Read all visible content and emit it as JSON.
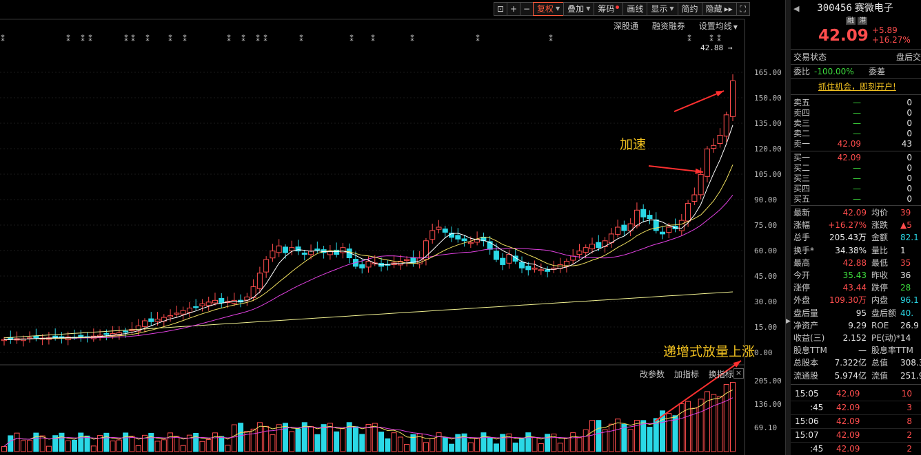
{
  "toolbar": {
    "buttons": [
      "复权",
      "叠加",
      "筹码",
      "画线",
      "显示",
      "简约",
      "隐藏"
    ],
    "sublinks": [
      "深股通",
      "融资融券",
      "设置均线"
    ]
  },
  "chart": {
    "price_labels": [
      "165.00",
      "150.00",
      "135.00",
      "120.00",
      "105.00",
      "90.00",
      "75.00",
      "60.00",
      "45.00",
      "30.00",
      "15.00",
      "0.00"
    ],
    "vol_labels": [
      "205.00",
      "136.00",
      "69.10"
    ],
    "high_marker": "42.88",
    "indicator_links": [
      "改参数",
      "加指标",
      "换指标"
    ],
    "annotation_accelerate": "加速",
    "annotation_volume": "递增式放量上涨",
    "colors": {
      "up": "#ff4d4d",
      "down": "#2ad8e6",
      "ma5": "#ffffff",
      "ma10": "#f0e060",
      "ma20": "#e040e0",
      "ma60": "#f0f090",
      "arrow": "#ff3030"
    }
  },
  "quote": {
    "code": "300456",
    "name": "赛微电子",
    "tags": [
      "融",
      "港"
    ],
    "price": "42.09",
    "change": "+5.89",
    "change_pct": "+16.27%",
    "trade_status_label": "交易状态",
    "trade_status_value": "盘后交",
    "weibi_label": "委比",
    "weibi_value": "-100.00%",
    "weicha_label": "委差",
    "promo": "抓住机会，即刻开户!",
    "sells": [
      {
        "label": "卖五",
        "price": "—",
        "vol": "0"
      },
      {
        "label": "卖四",
        "price": "—",
        "vol": "0"
      },
      {
        "label": "卖三",
        "price": "—",
        "vol": "0"
      },
      {
        "label": "卖二",
        "price": "—",
        "vol": "0"
      },
      {
        "label": "卖一",
        "price": "42.09",
        "vol": "43"
      }
    ],
    "buys": [
      {
        "label": "买一",
        "price": "42.09",
        "vol": "0"
      },
      {
        "label": "买二",
        "price": "—",
        "vol": "0"
      },
      {
        "label": "买三",
        "price": "—",
        "vol": "0"
      },
      {
        "label": "买四",
        "price": "—",
        "vol": "0"
      },
      {
        "label": "买五",
        "price": "—",
        "vol": "0"
      }
    ],
    "stats": [
      {
        "l1": "最新",
        "v1": "42.09",
        "c1": "red",
        "l2": "均价",
        "v2": "39",
        "c2": "red"
      },
      {
        "l1": "涨幅",
        "v1": "+16.27%",
        "c1": "red",
        "l2": "涨跌",
        "v2": "▲5",
        "c2": "red"
      },
      {
        "l1": "总手",
        "v1": "205.43万",
        "c1": "white",
        "l2": "金额",
        "v2": "82.1",
        "c2": "cyan"
      },
      {
        "l1": "换手*",
        "v1": "34.38%",
        "c1": "white",
        "l2": "量比",
        "v2": "1",
        "c2": "white"
      },
      {
        "l1": "最高",
        "v1": "42.88",
        "c1": "red",
        "l2": "最低",
        "v2": "35",
        "c2": "red"
      },
      {
        "l1": "今开",
        "v1": "35.43",
        "c1": "green",
        "l2": "昨收",
        "v2": "36",
        "c2": "white"
      },
      {
        "l1": "涨停",
        "v1": "43.44",
        "c1": "red",
        "l2": "跌停",
        "v2": "28",
        "c2": "green"
      },
      {
        "l1": "外盘",
        "v1": "109.30万",
        "c1": "red",
        "l2": "内盘",
        "v2": "96.1",
        "c2": "cyan"
      },
      {
        "l1": "盘后量",
        "v1": "95",
        "c1": "white",
        "l2": "盘后额",
        "v2": "40.",
        "c2": "cyan"
      },
      {
        "l1": "净资产",
        "v1": "9.29",
        "c1": "white",
        "l2": "ROE",
        "v2": "26.9",
        "c2": "white"
      },
      {
        "l1": "收益(三)",
        "v1": "2.152",
        "c1": "white",
        "l2": "PE(动)*",
        "v2": "14",
        "c2": "white"
      },
      {
        "l1": "股息TTM",
        "v1": "—",
        "c1": "white",
        "l2": "股息率TTM",
        "v2": "",
        "c2": "white"
      },
      {
        "l1": "总股本",
        "v1": "7.322亿",
        "c1": "white",
        "l2": "总值",
        "v2": "308.3",
        "c2": "white"
      },
      {
        "l1": "流通股",
        "v1": "5.974亿",
        "c1": "white",
        "l2": "流值",
        "v2": "251.9",
        "c2": "white"
      }
    ],
    "ticks": [
      {
        "time": "15:05",
        "price": "42.09",
        "vol": "10"
      },
      {
        "time": ":45",
        "price": "42.09",
        "vol": "3"
      },
      {
        "time": "15:06",
        "price": "42.09",
        "vol": "8"
      },
      {
        "time": "15:07",
        "price": "42.09",
        "vol": "2"
      },
      {
        "time": ":45",
        "price": "42.09",
        "vol": "2"
      }
    ]
  }
}
